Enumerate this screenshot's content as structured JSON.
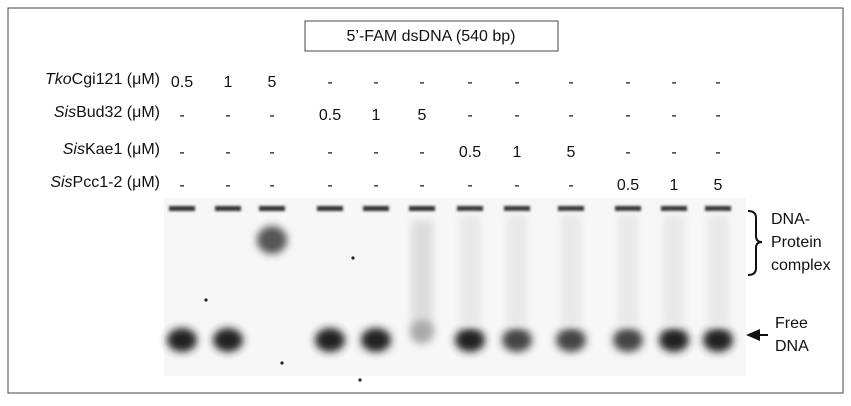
{
  "title": "5’-FAM dsDNA (540 bp)",
  "rows": [
    {
      "italic": "Tko",
      "label": "Cgi121 (μM)",
      "values": [
        "0.5",
        "1",
        "5",
        "-",
        "-",
        "-",
        "-",
        "-",
        "-",
        "-",
        "-",
        "-"
      ]
    },
    {
      "italic": "Sis",
      "label": "Bud32 (μM)",
      "values": [
        "-",
        "-",
        "-",
        "0.5",
        "1",
        "5",
        "-",
        "-",
        "-",
        "-",
        "-",
        "-"
      ]
    },
    {
      "italic": "Sis",
      "label": "Kae1 (μM)",
      "values": [
        "-",
        "-",
        "-",
        "-",
        "-",
        "-",
        "0.5",
        "1",
        "5",
        "-",
        "-",
        "-"
      ]
    },
    {
      "italic": "Sis",
      "label": "Pcc1-2 (μM)",
      "values": [
        "-",
        "-",
        "-",
        "-",
        "-",
        "-",
        "-",
        "-",
        "-",
        "0.5",
        "1",
        "5"
      ]
    }
  ],
  "complex_label": [
    "DNA-",
    "Protein",
    "complex"
  ],
  "free_label": [
    "Free",
    "DNA"
  ]
}
